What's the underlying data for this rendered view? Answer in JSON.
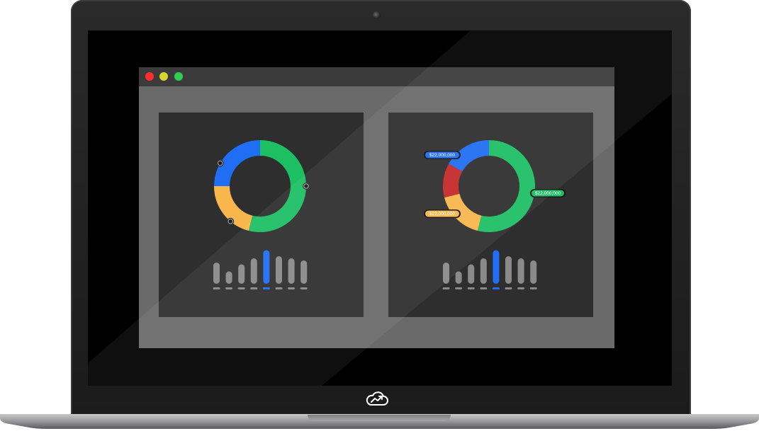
{
  "colors": {
    "blue": "#1f6ef4",
    "green": "#1dbf63",
    "yellow": "#f8b64c",
    "red": "#c62828",
    "bar_gray": "#8a8a8a",
    "window_close": "#ff2d2d",
    "window_minimize": "#d9d52a",
    "window_maximize": "#2fcf56"
  },
  "icons": {
    "logo": "cloud-chart-icon"
  },
  "dashboard": {
    "left_panel": {
      "donut": [
        {
          "name": "blue",
          "share": 0.25
        },
        {
          "name": "green",
          "share": 0.54
        },
        {
          "name": "yellow",
          "share": 0.21
        }
      ],
      "bars": [
        0.6,
        0.35,
        0.55,
        0.72,
        0.95,
        0.78,
        0.72,
        0.66
      ],
      "highlighted_bar": 4
    },
    "right_panel": {
      "donut": [
        {
          "name": "blue",
          "share": 0.17
        },
        {
          "name": "green",
          "share": 0.54
        },
        {
          "name": "yellow",
          "share": 0.17
        },
        {
          "name": "red",
          "share": 0.12
        }
      ],
      "bars": [
        0.6,
        0.35,
        0.55,
        0.72,
        0.95,
        0.78,
        0.72,
        0.66
      ],
      "highlighted_bar": 4,
      "labels": [
        {
          "text": "$22,000,000",
          "color": "blue"
        },
        {
          "text": "$22,000,000",
          "color": "green"
        },
        {
          "text": "$22,000,000",
          "color": "yellow"
        }
      ]
    }
  }
}
